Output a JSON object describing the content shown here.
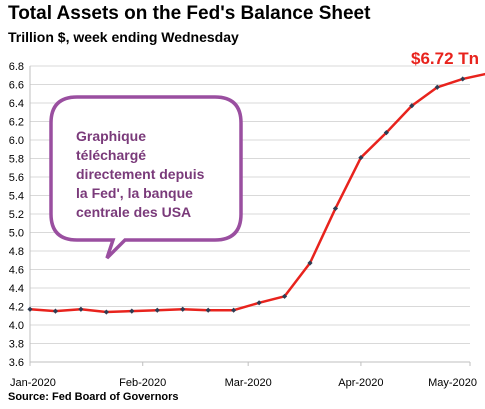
{
  "title": "Total Assets on the Fed's Balance Sheet",
  "subtitle": "Trillion $, week ending Wednesday",
  "source": "Source: Fed Board of Governors",
  "annotation": {
    "text_lines": [
      "Graphique",
      "téléchargé",
      "directement depuis",
      "la Fed', la banque",
      "centrale des USA"
    ],
    "color": "#7a3a7a",
    "border_color": "#9a4fa0"
  },
  "last_value_label": "$6.72 Tn",
  "colors": {
    "line": "#e8231d",
    "marker": "#2f3c52",
    "grid": "#d9d9d9",
    "axis": "#bfbfbf",
    "label_accent": "#e8231d"
  },
  "chart_data": {
    "type": "line",
    "title": "Total Assets on the Fed's Balance Sheet",
    "subtitle": "Trillion $, week ending Wednesday",
    "xlabel": "",
    "ylabel": "",
    "ylim": [
      3.6,
      6.8
    ],
    "yticks": [
      3.6,
      3.8,
      4.0,
      4.2,
      4.4,
      4.6,
      4.8,
      5.0,
      5.2,
      5.4,
      5.6,
      5.8,
      6.0,
      6.2,
      6.4,
      6.6,
      6.8
    ],
    "ytick_labels": [
      "3.6",
      "3.8",
      "4.0",
      "4.2",
      "4.4",
      "4.6",
      "4.8",
      "5.0",
      "5.2",
      "5.4",
      "5.6",
      "5.8",
      "6.0",
      "6.2",
      "6.4",
      "6.6",
      "6.8"
    ],
    "xlim": [
      "2020-01-01",
      "2020-05-01"
    ],
    "xticks": [
      "2020-01-01",
      "2020-02-01",
      "2020-03-01",
      "2020-04-01",
      "2020-05-01"
    ],
    "xtick_labels": [
      "Jan-2020",
      "Feb-2020",
      "Mar-2020",
      "Apr-2020",
      "May-2020"
    ],
    "grid": true,
    "series": [
      {
        "x": [
          "2020-01-01",
          "2020-01-08",
          "2020-01-15",
          "2020-01-22",
          "2020-01-29",
          "2020-02-05",
          "2020-02-12",
          "2020-02-19",
          "2020-02-26",
          "2020-03-04",
          "2020-03-11",
          "2020-03-18",
          "2020-03-25",
          "2020-04-01",
          "2020-04-08",
          "2020-04-15",
          "2020-04-22",
          "2020-04-29",
          "2020-05-06"
        ],
        "values": [
          4.17,
          4.15,
          4.17,
          4.14,
          4.15,
          4.16,
          4.17,
          4.16,
          4.16,
          4.24,
          4.31,
          4.67,
          5.26,
          5.81,
          6.08,
          6.37,
          6.57,
          6.66,
          6.72
        ]
      }
    ]
  }
}
